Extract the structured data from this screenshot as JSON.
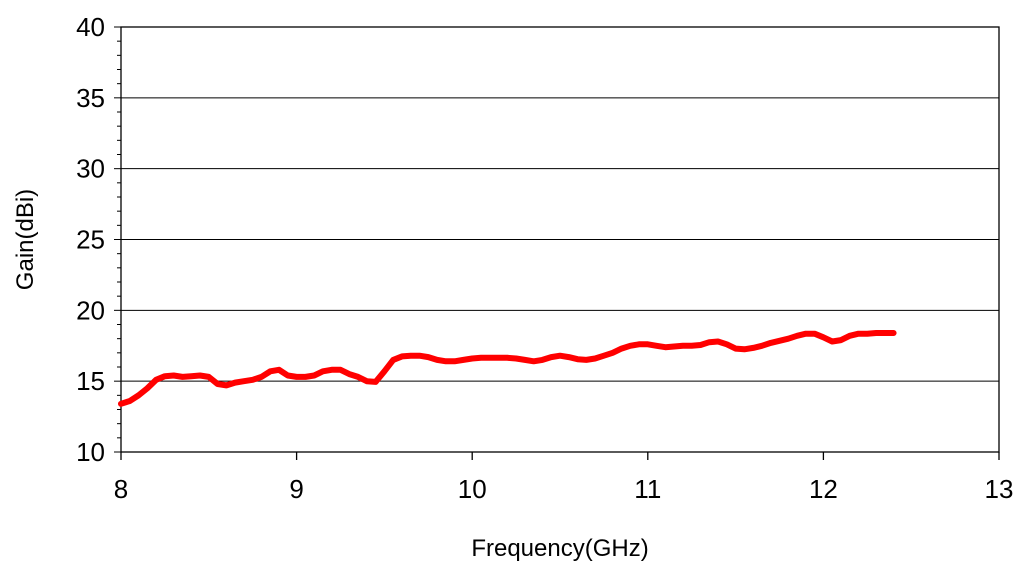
{
  "chart_data": {
    "type": "line",
    "title": "",
    "xlabel": "Frequency(GHz)",
    "ylabel": "Gain(dBi)",
    "xlim": [
      8,
      13
    ],
    "ylim": [
      10,
      40
    ],
    "x_ticks": [
      8,
      9,
      10,
      11,
      12,
      13
    ],
    "y_ticks": [
      10,
      15,
      20,
      25,
      30,
      35,
      40
    ],
    "x_tick_labels": [
      "8",
      "9",
      "10",
      "11",
      "12",
      "13"
    ],
    "y_tick_labels": [
      "10",
      "15",
      "20",
      "25",
      "30",
      "35",
      "40"
    ],
    "grid": "horizontal major lines",
    "legend": "none",
    "series": [
      {
        "color": "#ff0000",
        "x": [
          8.0,
          8.05,
          8.1,
          8.15,
          8.2,
          8.25,
          8.3,
          8.35,
          8.4,
          8.45,
          8.5,
          8.55,
          8.6,
          8.65,
          8.7,
          8.75,
          8.8,
          8.85,
          8.9,
          8.95,
          9.0,
          9.05,
          9.1,
          9.15,
          9.2,
          9.25,
          9.3,
          9.35,
          9.4,
          9.45,
          9.5,
          9.55,
          9.6,
          9.65,
          9.7,
          9.75,
          9.8,
          9.85,
          9.9,
          9.95,
          10.0,
          10.05,
          10.1,
          10.15,
          10.2,
          10.25,
          10.3,
          10.35,
          10.4,
          10.45,
          10.5,
          10.55,
          10.6,
          10.65,
          10.7,
          10.75,
          10.8,
          10.85,
          10.9,
          10.95,
          11.0,
          11.05,
          11.1,
          11.15,
          11.2,
          11.25,
          11.3,
          11.35,
          11.4,
          11.45,
          11.5,
          11.55,
          11.6,
          11.65,
          11.7,
          11.75,
          11.8,
          11.85,
          11.9,
          11.95,
          12.0,
          12.05,
          12.1,
          12.15,
          12.2,
          12.25,
          12.3,
          12.35,
          12.4
        ],
        "y": [
          13.4,
          13.6,
          14.0,
          14.5,
          15.1,
          15.35,
          15.4,
          15.3,
          15.35,
          15.4,
          15.3,
          14.8,
          14.7,
          14.9,
          15.0,
          15.1,
          15.3,
          15.7,
          15.8,
          15.4,
          15.3,
          15.3,
          15.4,
          15.7,
          15.8,
          15.8,
          15.5,
          15.3,
          15.0,
          14.95,
          15.7,
          16.5,
          16.75,
          16.8,
          16.8,
          16.7,
          16.5,
          16.4,
          16.4,
          16.5,
          16.6,
          16.65,
          16.65,
          16.65,
          16.65,
          16.6,
          16.5,
          16.4,
          16.5,
          16.7,
          16.8,
          16.7,
          16.55,
          16.5,
          16.6,
          16.8,
          17.0,
          17.3,
          17.5,
          17.6,
          17.6,
          17.5,
          17.4,
          17.45,
          17.5,
          17.5,
          17.55,
          17.75,
          17.8,
          17.6,
          17.3,
          17.25,
          17.35,
          17.5,
          17.7,
          17.85,
          18.0,
          18.2,
          18.35,
          18.35,
          18.1,
          17.8,
          17.9,
          18.2,
          18.35,
          18.35,
          18.4,
          18.4,
          18.4
        ]
      }
    ]
  }
}
